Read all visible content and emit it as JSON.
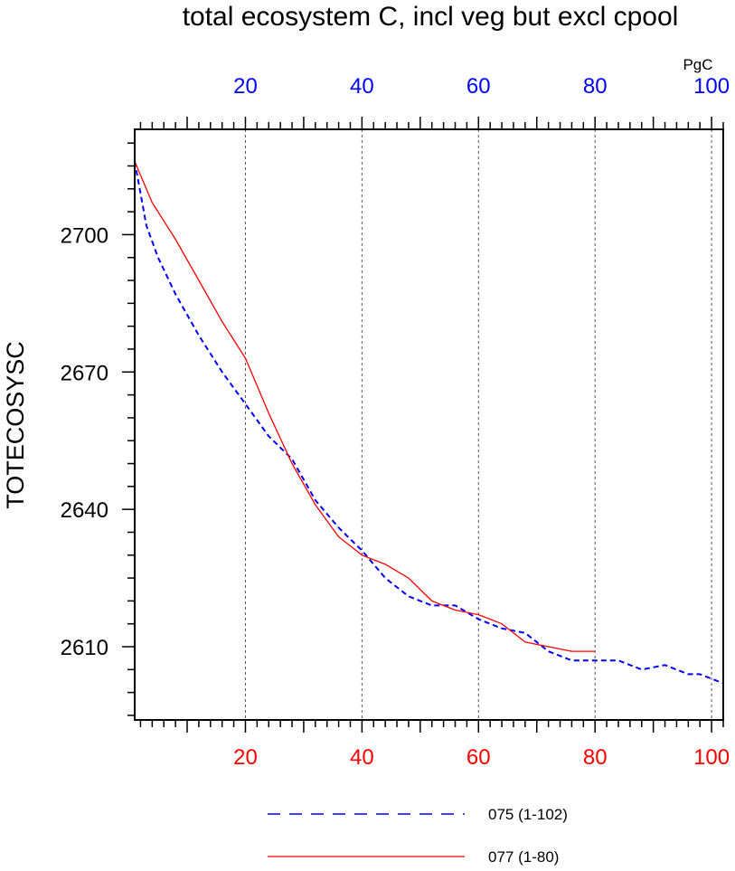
{
  "chart_data": {
    "type": "line",
    "title": "total ecosystem C, incl veg but excl cpool",
    "ylabel": "TOTECOSYSC",
    "units": "PgC",
    "xlim": [
      1,
      102
    ],
    "ylim": [
      2594,
      2723
    ],
    "grid": "vertical dashed at 20, 40, 60, 80, 100",
    "bottom_x_axis": {
      "color": "#ff0000",
      "ticks": [
        20,
        40,
        60,
        80,
        100
      ],
      "labels": [
        "20",
        "40",
        "60",
        "80",
        "100"
      ]
    },
    "top_x_axis": {
      "color": "#0000ff",
      "ticks": [
        20,
        40,
        60,
        80,
        100
      ],
      "labels": [
        "20",
        "40",
        "60",
        "80",
        "100"
      ]
    },
    "y_axis": {
      "ticks": [
        2610,
        2640,
        2670,
        2700
      ],
      "labels": [
        "2610",
        "2640",
        "2670",
        "2700"
      ]
    },
    "legend_position": "bottom",
    "series": [
      {
        "name": "075 (1-102)",
        "color": "#0000ff",
        "style": "dashed",
        "x": [
          1,
          3,
          5,
          8,
          12,
          16,
          20,
          24,
          28,
          32,
          36,
          40,
          44,
          48,
          52,
          56,
          60,
          64,
          68,
          72,
          76,
          80,
          84,
          88,
          92,
          96,
          98,
          102
        ],
        "y": [
          2716,
          2702,
          2695,
          2687,
          2678,
          2670,
          2663,
          2656,
          2651,
          2642,
          2636,
          2631,
          2625,
          2621,
          2619,
          2619,
          2616,
          2614,
          2613,
          2609,
          2607,
          2607,
          2607,
          2605,
          2606,
          2604,
          2604,
          2602
        ]
      },
      {
        "name": "077 (1-80)",
        "color": "#ff0000",
        "style": "solid",
        "x": [
          1,
          4,
          8,
          12,
          16,
          20,
          24,
          28,
          32,
          36,
          40,
          44,
          48,
          52,
          56,
          60,
          64,
          68,
          72,
          76,
          80
        ],
        "y": [
          2716,
          2707,
          2699,
          2690,
          2681,
          2673,
          2661,
          2650,
          2641,
          2634,
          2630,
          2628,
          2625,
          2620,
          2618,
          2617,
          2615,
          2611,
          2610,
          2609,
          2609
        ]
      }
    ]
  }
}
